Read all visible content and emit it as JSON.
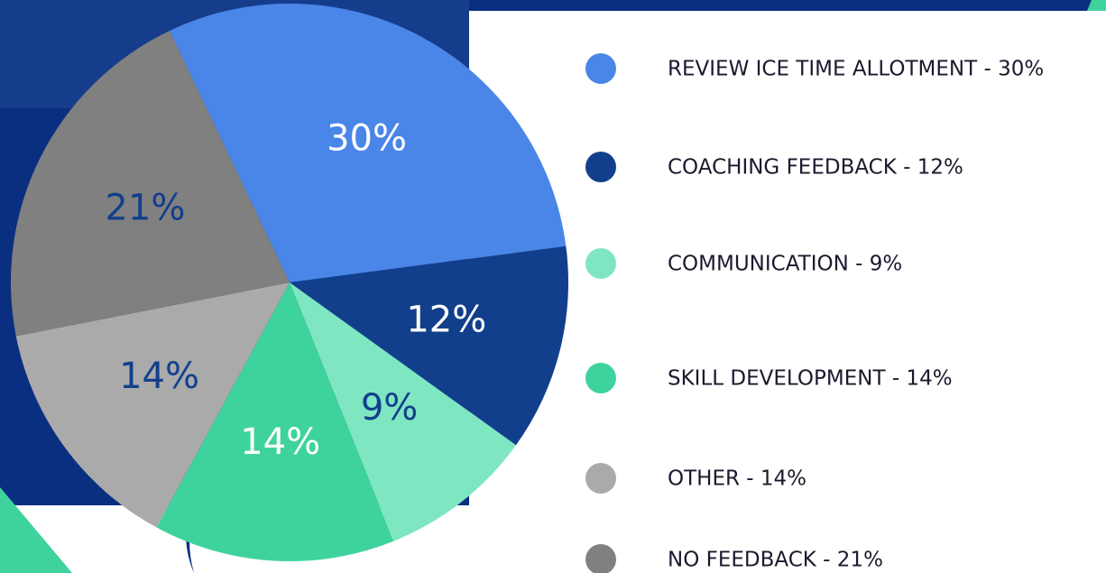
{
  "chart_data": {
    "type": "pie",
    "categories": [
      "REVIEW ICE TIME ALLOTMENT - 30%",
      "COACHING FEEDBACK - 12%",
      "COMMUNICATION - 9%",
      "SKILL DEVELOPMENT - 14%",
      "OTHER - 14%",
      "NO FEEDBACK - 21%"
    ],
    "values": [
      30,
      12,
      9,
      14,
      14,
      21
    ],
    "value_labels": [
      "30%",
      "12%",
      "9%",
      "14%",
      "14%",
      "21%"
    ],
    "colors": [
      "#4a86e8",
      "#123f8c",
      "#7fe6c2",
      "#3ed39c",
      "#aaaaaa",
      "#808080"
    ],
    "label_colors": [
      "#ffffff",
      "#ffffff",
      "#123f8c",
      "#ffffff",
      "#123f8c",
      "#123f8c"
    ],
    "start_angle": -25.5
  }
}
